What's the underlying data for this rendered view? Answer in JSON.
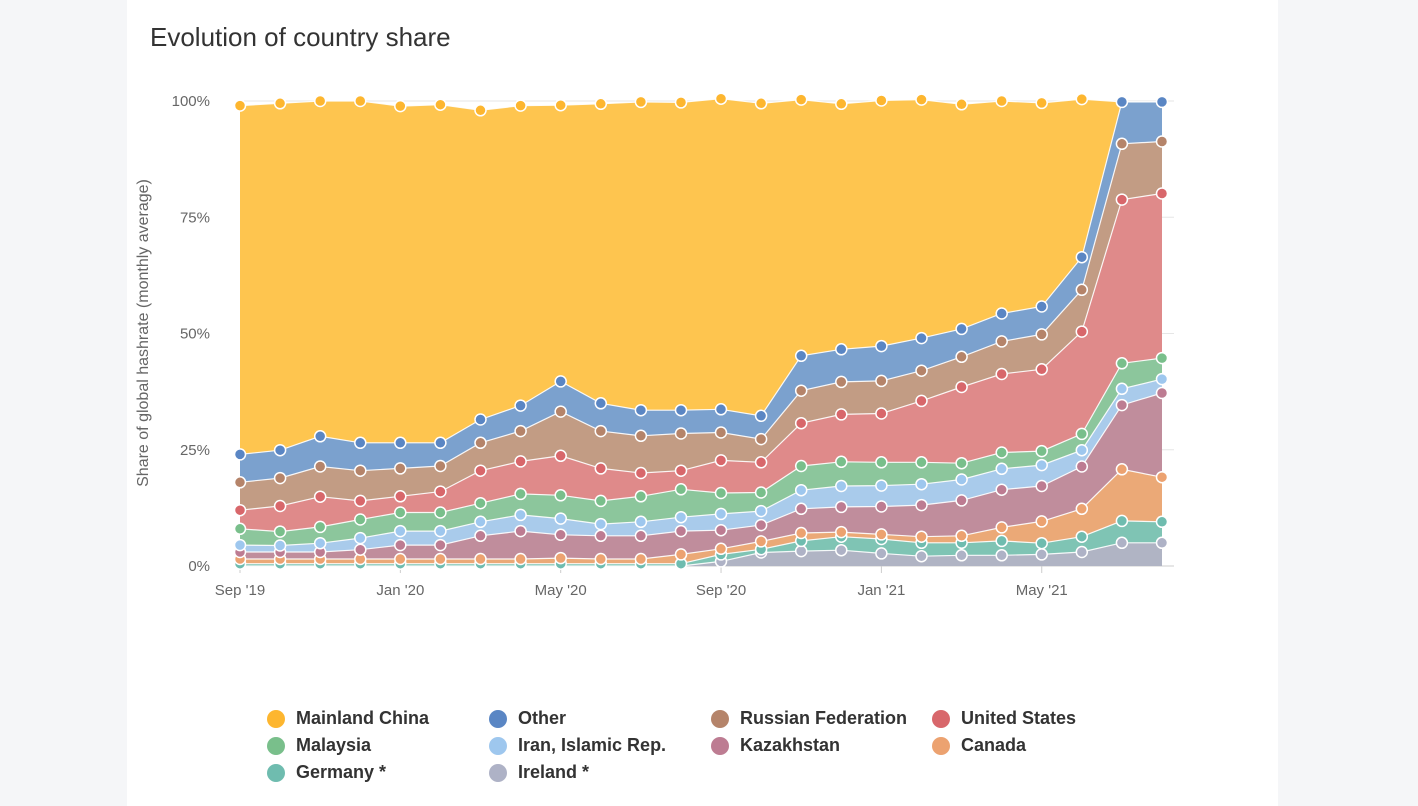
{
  "page": {
    "title": "Evolution of country share"
  },
  "chart_data": {
    "type": "area",
    "stacked": true,
    "normalized": true,
    "title": "Evolution of country share",
    "ylabel": "Share of global hashrate (monthly average)",
    "xlabel": "",
    "ylim": [
      0,
      100
    ],
    "y_ticks": [
      "0%",
      "25%",
      "50%",
      "75%",
      "100%"
    ],
    "x_tick_labels": [
      {
        "index": 0,
        "label": "Sep '19"
      },
      {
        "index": 4,
        "label": "Jan '20"
      },
      {
        "index": 8,
        "label": "May '20"
      },
      {
        "index": 12,
        "label": "Sep '20"
      },
      {
        "index": 16,
        "label": "Jan '21"
      },
      {
        "index": 20,
        "label": "May '21"
      }
    ],
    "x": [
      "2019-09",
      "2019-10",
      "2019-11",
      "2019-12",
      "2020-01",
      "2020-02",
      "2020-03",
      "2020-04",
      "2020-05",
      "2020-06",
      "2020-07",
      "2020-08",
      "2020-09",
      "2020-10",
      "2020-11",
      "2020-12",
      "2021-01",
      "2021-02",
      "2021-03",
      "2021-04",
      "2021-05",
      "2021-06",
      "2021-07",
      "2021-08"
    ],
    "series": [
      {
        "name": "Ireland *",
        "color": "#b0b4c4",
        "values": [
          0,
          0,
          0,
          0,
          0,
          0,
          0,
          0,
          0,
          0,
          0,
          0,
          1,
          2.9,
          3.2,
          3.4,
          2.7,
          2.1,
          2.3,
          2.3,
          2.5,
          3,
          5,
          5
        ]
      },
      {
        "name": "Germany *",
        "color": "#7fc4b4",
        "values": [
          0.5,
          0.5,
          0.5,
          0.5,
          0.5,
          0.5,
          0.5,
          0.5,
          0.5,
          0.5,
          0.5,
          0.5,
          1.5,
          0.7,
          2.2,
          2.9,
          3.1,
          2.9,
          2.7,
          3.1,
          2.4,
          3.3,
          4.7,
          4.5
        ]
      },
      {
        "name": "Canada",
        "color": "#eba977",
        "values": [
          1,
          1,
          1,
          1,
          1,
          1,
          1,
          1,
          1.2,
          1,
          1,
          2,
          1.2,
          1.7,
          1.7,
          1,
          1,
          1.3,
          1.5,
          2.9,
          4.7,
          6,
          11.1,
          9.6
        ]
      },
      {
        "name": "Kazakhstan",
        "color": "#c08d9c",
        "values": [
          1.5,
          1.5,
          1.5,
          2,
          3,
          3,
          5,
          6,
          5,
          5,
          5,
          5,
          4,
          3.5,
          5.2,
          5.4,
          6,
          6.8,
          7.6,
          8.1,
          7.6,
          9.1,
          13.8,
          18.1
        ]
      },
      {
        "name": "Iran, Islamic Rep.",
        "color": "#a9cbeb",
        "values": [
          1.5,
          1.4,
          1.9,
          2.5,
          3,
          3,
          3,
          3.5,
          3.5,
          2.5,
          3,
          3,
          3.5,
          3,
          4,
          4.5,
          4.5,
          4.5,
          4.5,
          4.5,
          4.5,
          3.5,
          3.5,
          3
        ]
      },
      {
        "name": "Malaysia",
        "color": "#8cc69c",
        "values": [
          3.5,
          3,
          3.5,
          4,
          4,
          4,
          4,
          4.5,
          5,
          5,
          5.5,
          6,
          4.5,
          4,
          5.2,
          5.2,
          5,
          4.7,
          3.5,
          3.5,
          3,
          3.5,
          5.5,
          4.5
        ]
      },
      {
        "name": "United States",
        "color": "#df8a8a",
        "values": [
          4,
          5.5,
          6.5,
          4,
          3.5,
          4.5,
          7,
          7,
          8.5,
          7,
          5,
          4,
          7,
          6.5,
          9.2,
          10.2,
          10.5,
          13.2,
          16.4,
          16.9,
          17.6,
          22,
          35.2,
          35.4
        ]
      },
      {
        "name": "Russian Federation",
        "color": "#c29c84",
        "values": [
          6,
          6,
          6.5,
          6.5,
          6,
          5.5,
          6,
          6.5,
          9.5,
          8,
          8,
          8,
          6,
          5,
          7,
          7,
          7,
          6.5,
          6.5,
          7,
          7.5,
          9,
          12,
          11.2
        ]
      },
      {
        "name": "Other",
        "color": "#7ba1ce",
        "values": [
          6,
          6,
          6.5,
          6,
          5.5,
          5,
          5,
          5.5,
          6.5,
          6,
          5.5,
          5,
          5,
          5,
          7.5,
          7,
          7.5,
          7,
          6,
          6,
          6,
          7,
          9,
          8.5
        ]
      },
      {
        "name": "Mainland China",
        "color": "#fec54f",
        "values": [
          75,
          74.6,
          72.1,
          73.5,
          72.4,
          72.7,
          66.5,
          64.5,
          59.4,
          64.4,
          66.3,
          66.2,
          66.8,
          67.2,
          55.1,
          52.8,
          52.8,
          51.3,
          48.3,
          45.7,
          43.8,
          34,
          0,
          0
        ]
      }
    ],
    "marker_colors": {
      "Mainland China": "#fdb62f",
      "Other": "#5a86c4",
      "Russian Federation": "#b5846a",
      "United States": "#d8676b",
      "Malaysia": "#79bf8b",
      "Iran, Islamic Rep.": "#9ec7ee",
      "Kazakhstan": "#bd7c92",
      "Canada": "#eca270",
      "Germany *": "#6fbcaf",
      "Ireland *": "#aeb2c6"
    },
    "grid": true,
    "legend_position": "bottom"
  },
  "legend": [
    {
      "name": "Mainland China",
      "color": "#fdb62f"
    },
    {
      "name": "Other",
      "color": "#5a86c4"
    },
    {
      "name": "Russian Federation",
      "color": "#b5846a"
    },
    {
      "name": "United States",
      "color": "#d8676b"
    },
    {
      "name": "Malaysia",
      "color": "#79bf8b"
    },
    {
      "name": "Iran, Islamic Rep.",
      "color": "#9ec7ee"
    },
    {
      "name": "Kazakhstan",
      "color": "#bd7c92"
    },
    {
      "name": "Canada",
      "color": "#eca270"
    },
    {
      "name": "Germany *",
      "color": "#6fbcaf"
    },
    {
      "name": "Ireland *",
      "color": "#aeb2c6"
    }
  ]
}
